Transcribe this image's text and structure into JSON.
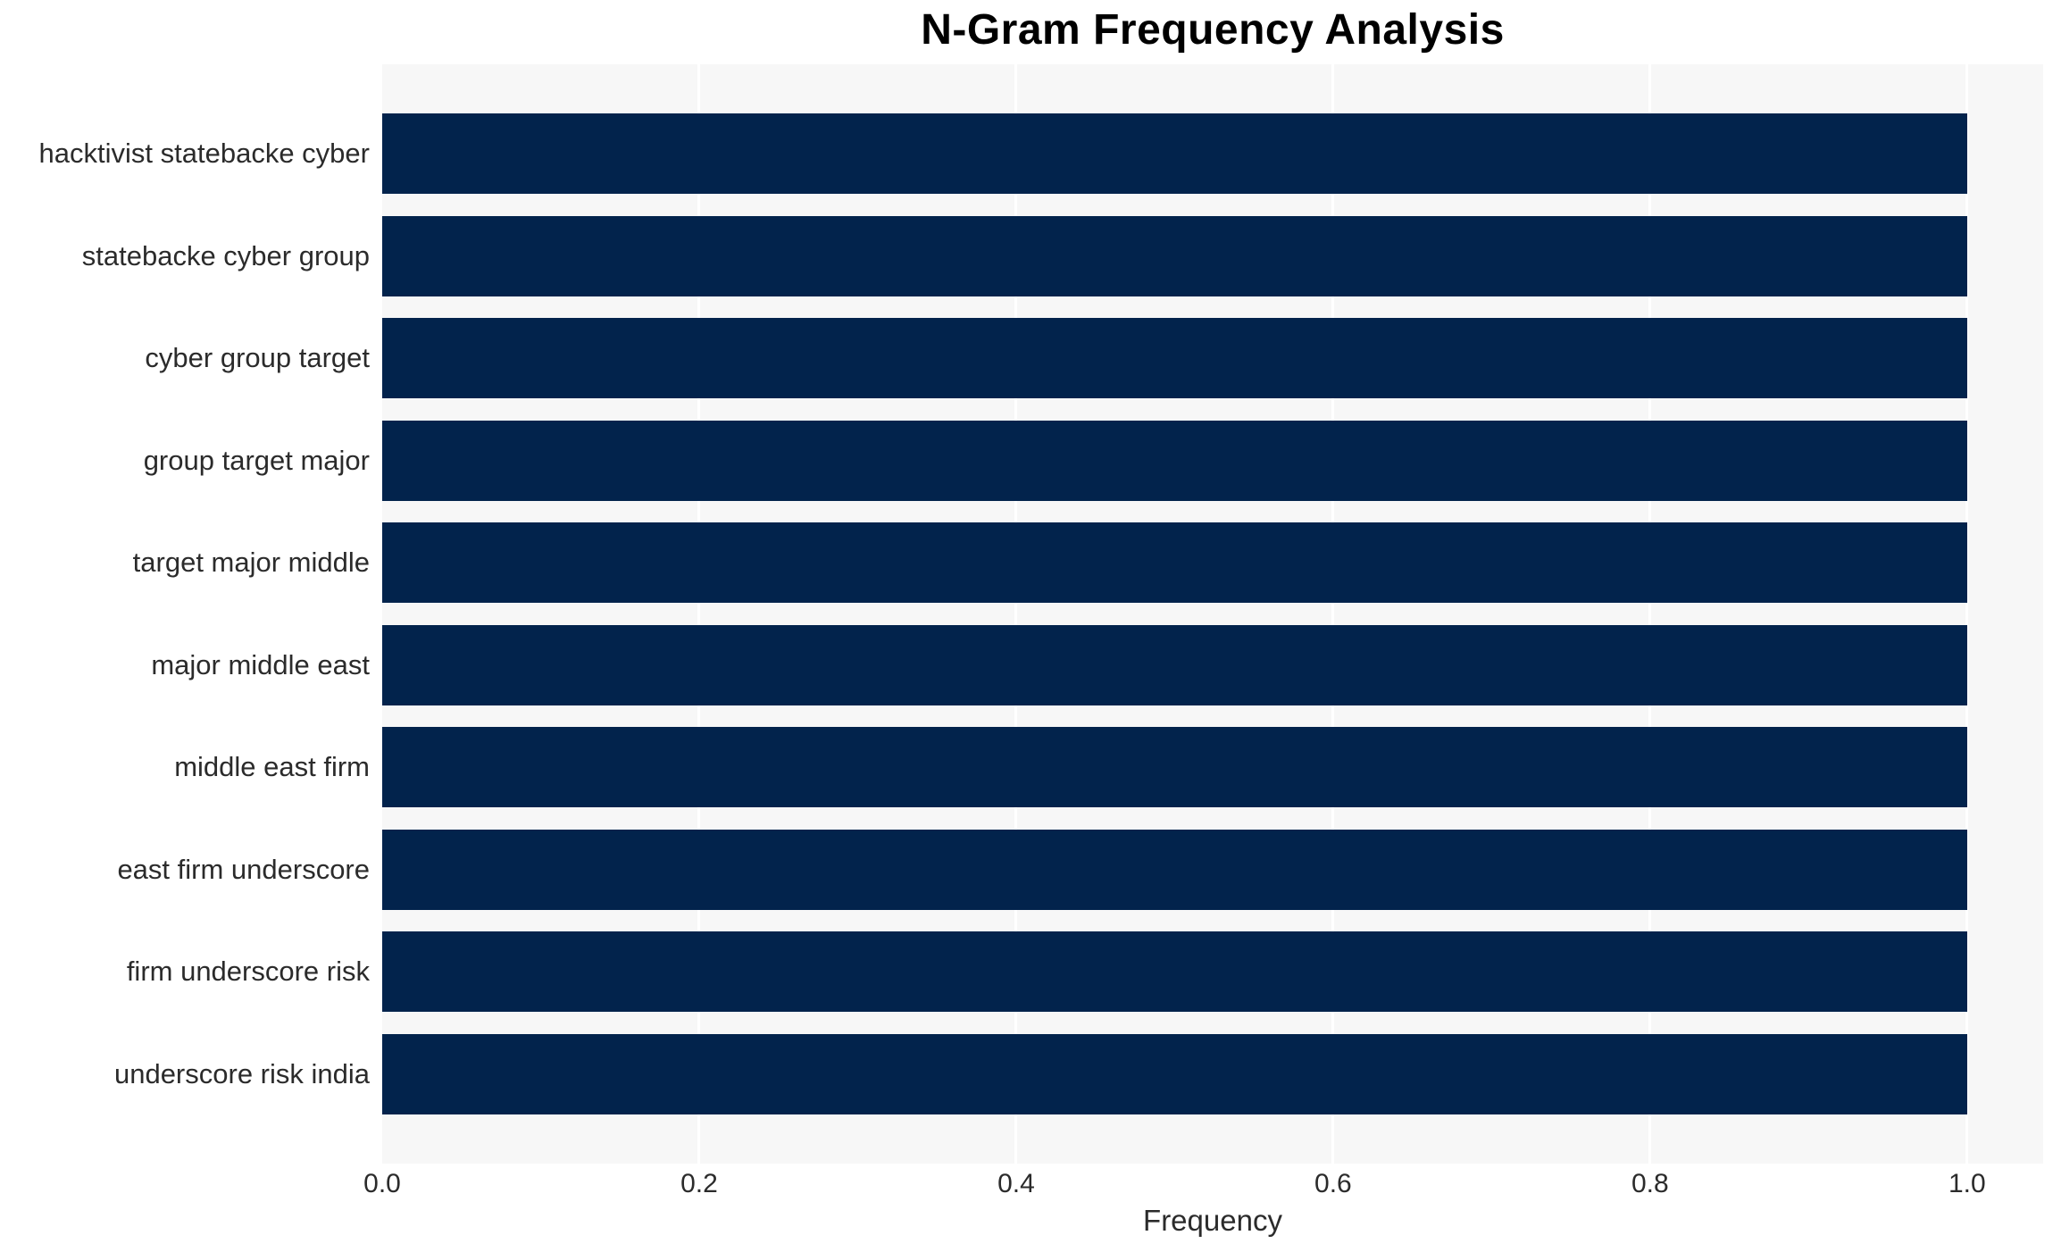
{
  "chart_data": {
    "type": "bar",
    "orientation": "horizontal",
    "title": "N-Gram Frequency Analysis",
    "xlabel": "Frequency",
    "ylabel": "",
    "categories": [
      "hacktivist statebacke cyber",
      "statebacke cyber group",
      "cyber group target",
      "group target major",
      "target major middle",
      "major middle east",
      "middle east firm",
      "east firm underscore",
      "firm underscore risk",
      "underscore risk india"
    ],
    "values": [
      1.0,
      1.0,
      1.0,
      1.0,
      1.0,
      1.0,
      1.0,
      1.0,
      1.0,
      1.0
    ],
    "xticks": [
      "0.0",
      "0.2",
      "0.4",
      "0.6",
      "0.8",
      "1.0"
    ],
    "xtick_values": [
      0.0,
      0.2,
      0.4,
      0.6,
      0.8,
      1.0
    ],
    "xlim": [
      0.0,
      1.048
    ],
    "grid": true,
    "grid_axis": "x",
    "legend_position": "none",
    "colors": {
      "bar": "#02234c",
      "plot_background": "#f7f7f7",
      "gridline": "#ffffff",
      "tick_text": "#2b2b2b",
      "title_text": "#000000",
      "page_background": "#ffffff"
    }
  }
}
